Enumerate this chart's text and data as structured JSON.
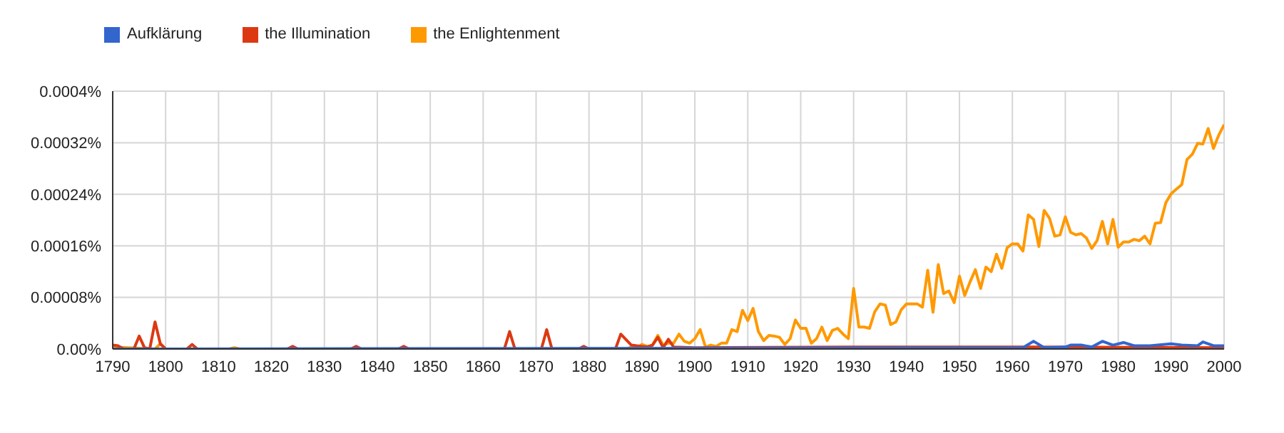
{
  "chart_data": {
    "type": "line",
    "legend": "top left",
    "grid": true,
    "xlim": [
      1790,
      2000
    ],
    "xticks": [
      1790,
      1800,
      1810,
      1820,
      1830,
      1840,
      1850,
      1860,
      1870,
      1880,
      1890,
      1900,
      1910,
      1920,
      1930,
      1940,
      1950,
      1960,
      1970,
      1980,
      1990,
      2000
    ],
    "ylim": [
      0,
      0.0004
    ],
    "yticks": [
      {
        "value": 0,
        "label": "0.00%"
      },
      {
        "value": 8e-05,
        "label": "0.00008%"
      },
      {
        "value": 0.00016,
        "label": "0.00016%"
      },
      {
        "value": 0.00024,
        "label": "0.00024%"
      },
      {
        "value": 0.00032,
        "label": "0.00032%"
      },
      {
        "value": 0.0004,
        "label": "0.0004%"
      }
    ],
    "series": [
      {
        "name": "Aufklärung",
        "color": "#3366cc",
        "x": [
          1790,
          1900,
          1962,
          1964,
          1966,
          1970,
          1971,
          1973,
          1975,
          1977,
          1979,
          1981,
          1983,
          1986,
          1990,
          1992,
          1995,
          1996,
          1998,
          2000
        ],
        "values": [
          0,
          1e-06,
          2e-06,
          1.2e-05,
          2e-06,
          3e-06,
          6e-06,
          6e-06,
          3e-06,
          1.2e-05,
          6e-06,
          1e-05,
          5e-06,
          5e-06,
          8e-06,
          6e-06,
          5e-06,
          1.1e-05,
          5e-06,
          5e-06
        ]
      },
      {
        "name": "the Illumination",
        "color": "#dc3912",
        "x": [
          1790,
          1791,
          1792,
          1794,
          1795,
          1796,
          1797,
          1798,
          1799,
          1800,
          1804,
          1805,
          1806,
          1823,
          1824,
          1825,
          1835,
          1836,
          1837,
          1844,
          1845,
          1846,
          1864,
          1865,
          1866,
          1871,
          1872,
          1873,
          1878,
          1879,
          1880,
          1885,
          1886,
          1888,
          1890,
          1891,
          1892,
          1893,
          1894,
          1895,
          1896,
          1900,
          1930,
          1964,
          2000
        ],
        "values": [
          6e-06,
          5e-06,
          0,
          0,
          2e-05,
          2e-06,
          0,
          4.2e-05,
          8e-06,
          0,
          0,
          7e-06,
          0,
          0,
          4e-06,
          0,
          0,
          4e-06,
          0,
          0,
          4e-06,
          0,
          0,
          2.7e-05,
          0,
          0,
          3e-05,
          0,
          0,
          4e-06,
          0,
          0,
          2.3e-05,
          6e-06,
          4e-06,
          3e-06,
          6e-06,
          1.8e-05,
          2e-06,
          1.5e-05,
          3e-06,
          2e-06,
          3e-06,
          3e-06,
          2e-06
        ]
      },
      {
        "name": "the Enlightenment",
        "color": "#ff9900",
        "x": [
          1790,
          1798,
          1799,
          1800,
          1812,
          1813,
          1814,
          1887,
          1888,
          1889,
          1890,
          1891,
          1892,
          1893,
          1894,
          1895,
          1896,
          1897,
          1898,
          1899,
          1900,
          1901,
          1902,
          1903,
          1904,
          1905,
          1906,
          1907,
          1908,
          1909,
          1910,
          1911,
          1912,
          1913,
          1914,
          1915,
          1916,
          1917,
          1918,
          1919,
          1920,
          1921,
          1922,
          1923,
          1924,
          1925,
          1926,
          1927,
          1928,
          1929,
          1930,
          1931,
          1932,
          1933,
          1934,
          1935,
          1936,
          1937,
          1938,
          1939,
          1940,
          1941,
          1942,
          1943,
          1944,
          1945,
          1946,
          1947,
          1948,
          1949,
          1950,
          1951,
          1952,
          1953,
          1954,
          1955,
          1956,
          1957,
          1958,
          1959,
          1960,
          1961,
          1962,
          1963,
          1964,
          1965,
          1966,
          1967,
          1968,
          1969,
          1970,
          1971,
          1972,
          1973,
          1974,
          1975,
          1976,
          1977,
          1978,
          1979,
          1980,
          1981,
          1982,
          1983,
          1984,
          1985,
          1986,
          1987,
          1988,
          1989,
          1990,
          1991,
          1992,
          1993,
          1994,
          1995,
          1996,
          1997,
          1998,
          1999,
          2000
        ],
        "values": [
          3e-06,
          0,
          8e-06,
          0,
          0,
          2e-06,
          0,
          0,
          3e-06,
          2e-06,
          7e-06,
          4e-06,
          6e-06,
          2.1e-05,
          6e-06,
          9e-06,
          9e-06,
          2.3e-05,
          1.2e-05,
          9e-06,
          1.6e-05,
          3e-05,
          3e-06,
          6e-06,
          4e-06,
          9e-06,
          9e-06,
          3e-05,
          2.7e-05,
          6e-05,
          4.4e-05,
          6.3e-05,
          2.7e-05,
          1.3e-05,
          2.1e-05,
          2e-05,
          1.8e-05,
          7e-06,
          1.6e-05,
          4.5e-05,
          3.2e-05,
          3.2e-05,
          9e-06,
          1.6e-05,
          3.4e-05,
          1.3e-05,
          2.9e-05,
          3.2e-05,
          2.3e-05,
          1.6e-05,
          9.4e-05,
          3.4e-05,
          3.4e-05,
          3.2e-05,
          5.8e-05,
          7e-05,
          6.8e-05,
          3.8e-05,
          4.2e-05,
          6.1e-05,
          7e-05,
          7e-05,
          7e-05,
          6.5e-05,
          0.000122,
          5.7e-05,
          0.000131,
          8.6e-05,
          9e-05,
          7.2e-05,
          0.000113,
          8.3e-05,
          0.000104,
          0.000123,
          9.4e-05,
          0.000127,
          0.00012,
          0.000147,
          0.000125,
          0.000157,
          0.000163,
          0.000163,
          0.000152,
          0.000208,
          0.000201,
          0.000159,
          0.000215,
          0.000203,
          0.000175,
          0.000177,
          0.000205,
          0.000181,
          0.000177,
          0.000179,
          0.000172,
          0.000156,
          0.000168,
          0.000198,
          0.000163,
          0.000201,
          0.000158,
          0.000166,
          0.000166,
          0.00017,
          0.000168,
          0.000175,
          0.000163,
          0.000195,
          0.000196,
          0.000227,
          0.000241,
          0.000248,
          0.000255,
          0.000294,
          0.000302,
          0.000319,
          0.000318,
          0.000342,
          0.000311,
          0.000332,
          0.000348
        ]
      }
    ]
  }
}
